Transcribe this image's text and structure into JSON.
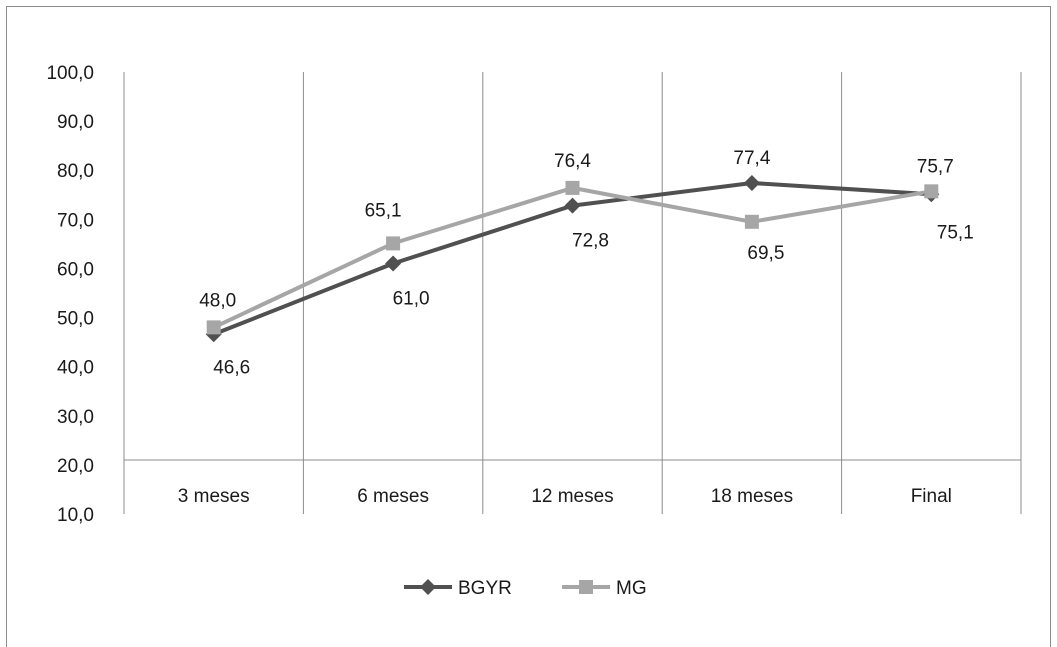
{
  "chart_data": {
    "type": "line",
    "categories": [
      "3 meses",
      "6 meses",
      "12 meses",
      "18 meses",
      "Final"
    ],
    "series": [
      {
        "name": "BGYR",
        "values": [
          46.6,
          61.0,
          72.8,
          77.4,
          75.1
        ],
        "color": "#505050",
        "marker": "diamond"
      },
      {
        "name": "MG",
        "values": [
          48.0,
          65.1,
          76.4,
          69.5,
          75.7
        ],
        "color": "#a6a6a6",
        "marker": "square"
      }
    ],
    "ylim": [
      10,
      100
    ],
    "yticks": [
      "10,0",
      "20,0",
      "30,0",
      "40,0",
      "50,0",
      "60,0",
      "70,0",
      "80,0",
      "90,0",
      "100,0"
    ],
    "grid": "vertical",
    "legend": "bottom"
  }
}
